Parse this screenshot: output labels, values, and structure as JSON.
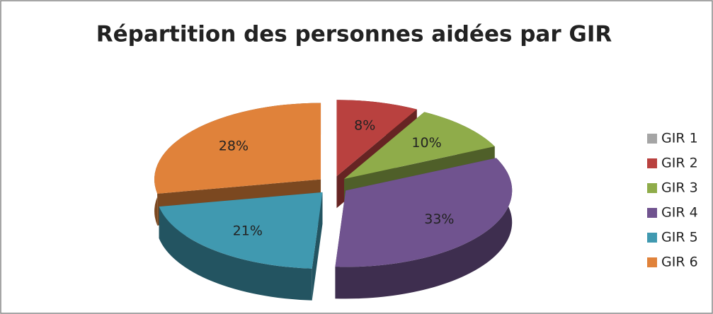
{
  "chart_data": {
    "type": "pie",
    "title": "Répartition des personnes aidées par GIR",
    "categories": [
      "GIR 1",
      "GIR 2",
      "GIR 3",
      "GIR 4",
      "GIR 5",
      "GIR 6"
    ],
    "values": [
      0,
      8,
      10,
      33,
      21,
      28
    ],
    "value_labels": [
      null,
      "8%",
      "10%",
      "33%",
      "21%",
      "28%"
    ],
    "colors": [
      "#a5a5a5",
      "#b9413f",
      "#8fac4a",
      "#70538f",
      "#4099b0",
      "#e0823a"
    ],
    "legend": "right"
  }
}
